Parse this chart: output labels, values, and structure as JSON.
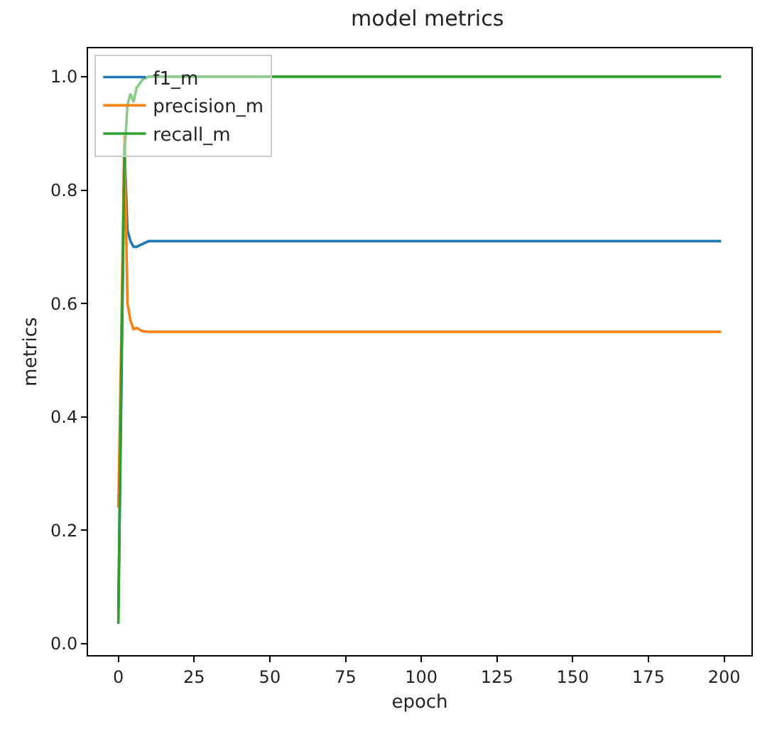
{
  "chart_data": {
    "type": "line",
    "title": "model metrics",
    "xlabel": "epoch",
    "ylabel": "metrics",
    "xlim": [
      -10,
      209
    ],
    "ylim": [
      -0.02,
      1.05
    ],
    "xticks": [
      0,
      25,
      50,
      75,
      100,
      125,
      150,
      175,
      200
    ],
    "yticks": [
      {
        "value": 0,
        "label": "0.0"
      },
      0.2,
      0.4,
      0.6,
      0.8,
      {
        "value": 1,
        "label": "1.0"
      }
    ],
    "legend": "top left",
    "series": [
      {
        "name": "f1_m",
        "color": "#1f77b4",
        "x": [
          0,
          1,
          2,
          3,
          4,
          5,
          6,
          8,
          10,
          199
        ],
        "values": [
          0.06,
          0.45,
          0.88,
          0.73,
          0.71,
          0.7,
          0.7,
          0.705,
          0.71,
          0.71
        ]
      },
      {
        "name": "precision_m",
        "color": "#ff7f0e",
        "x": [
          0,
          1,
          2,
          3,
          4,
          5,
          6,
          8,
          10,
          199
        ],
        "values": [
          0.24,
          0.55,
          0.9,
          0.6,
          0.57,
          0.555,
          0.557,
          0.551,
          0.55,
          0.55
        ]
      },
      {
        "name": "recall_m",
        "color": "#2ca02c",
        "x": [
          0,
          1,
          2,
          3,
          4,
          5,
          6,
          8,
          10,
          199
        ],
        "values": [
          0.035,
          0.5,
          0.86,
          0.95,
          0.97,
          0.955,
          0.98,
          0.995,
          1.0,
          1.0
        ]
      }
    ]
  }
}
